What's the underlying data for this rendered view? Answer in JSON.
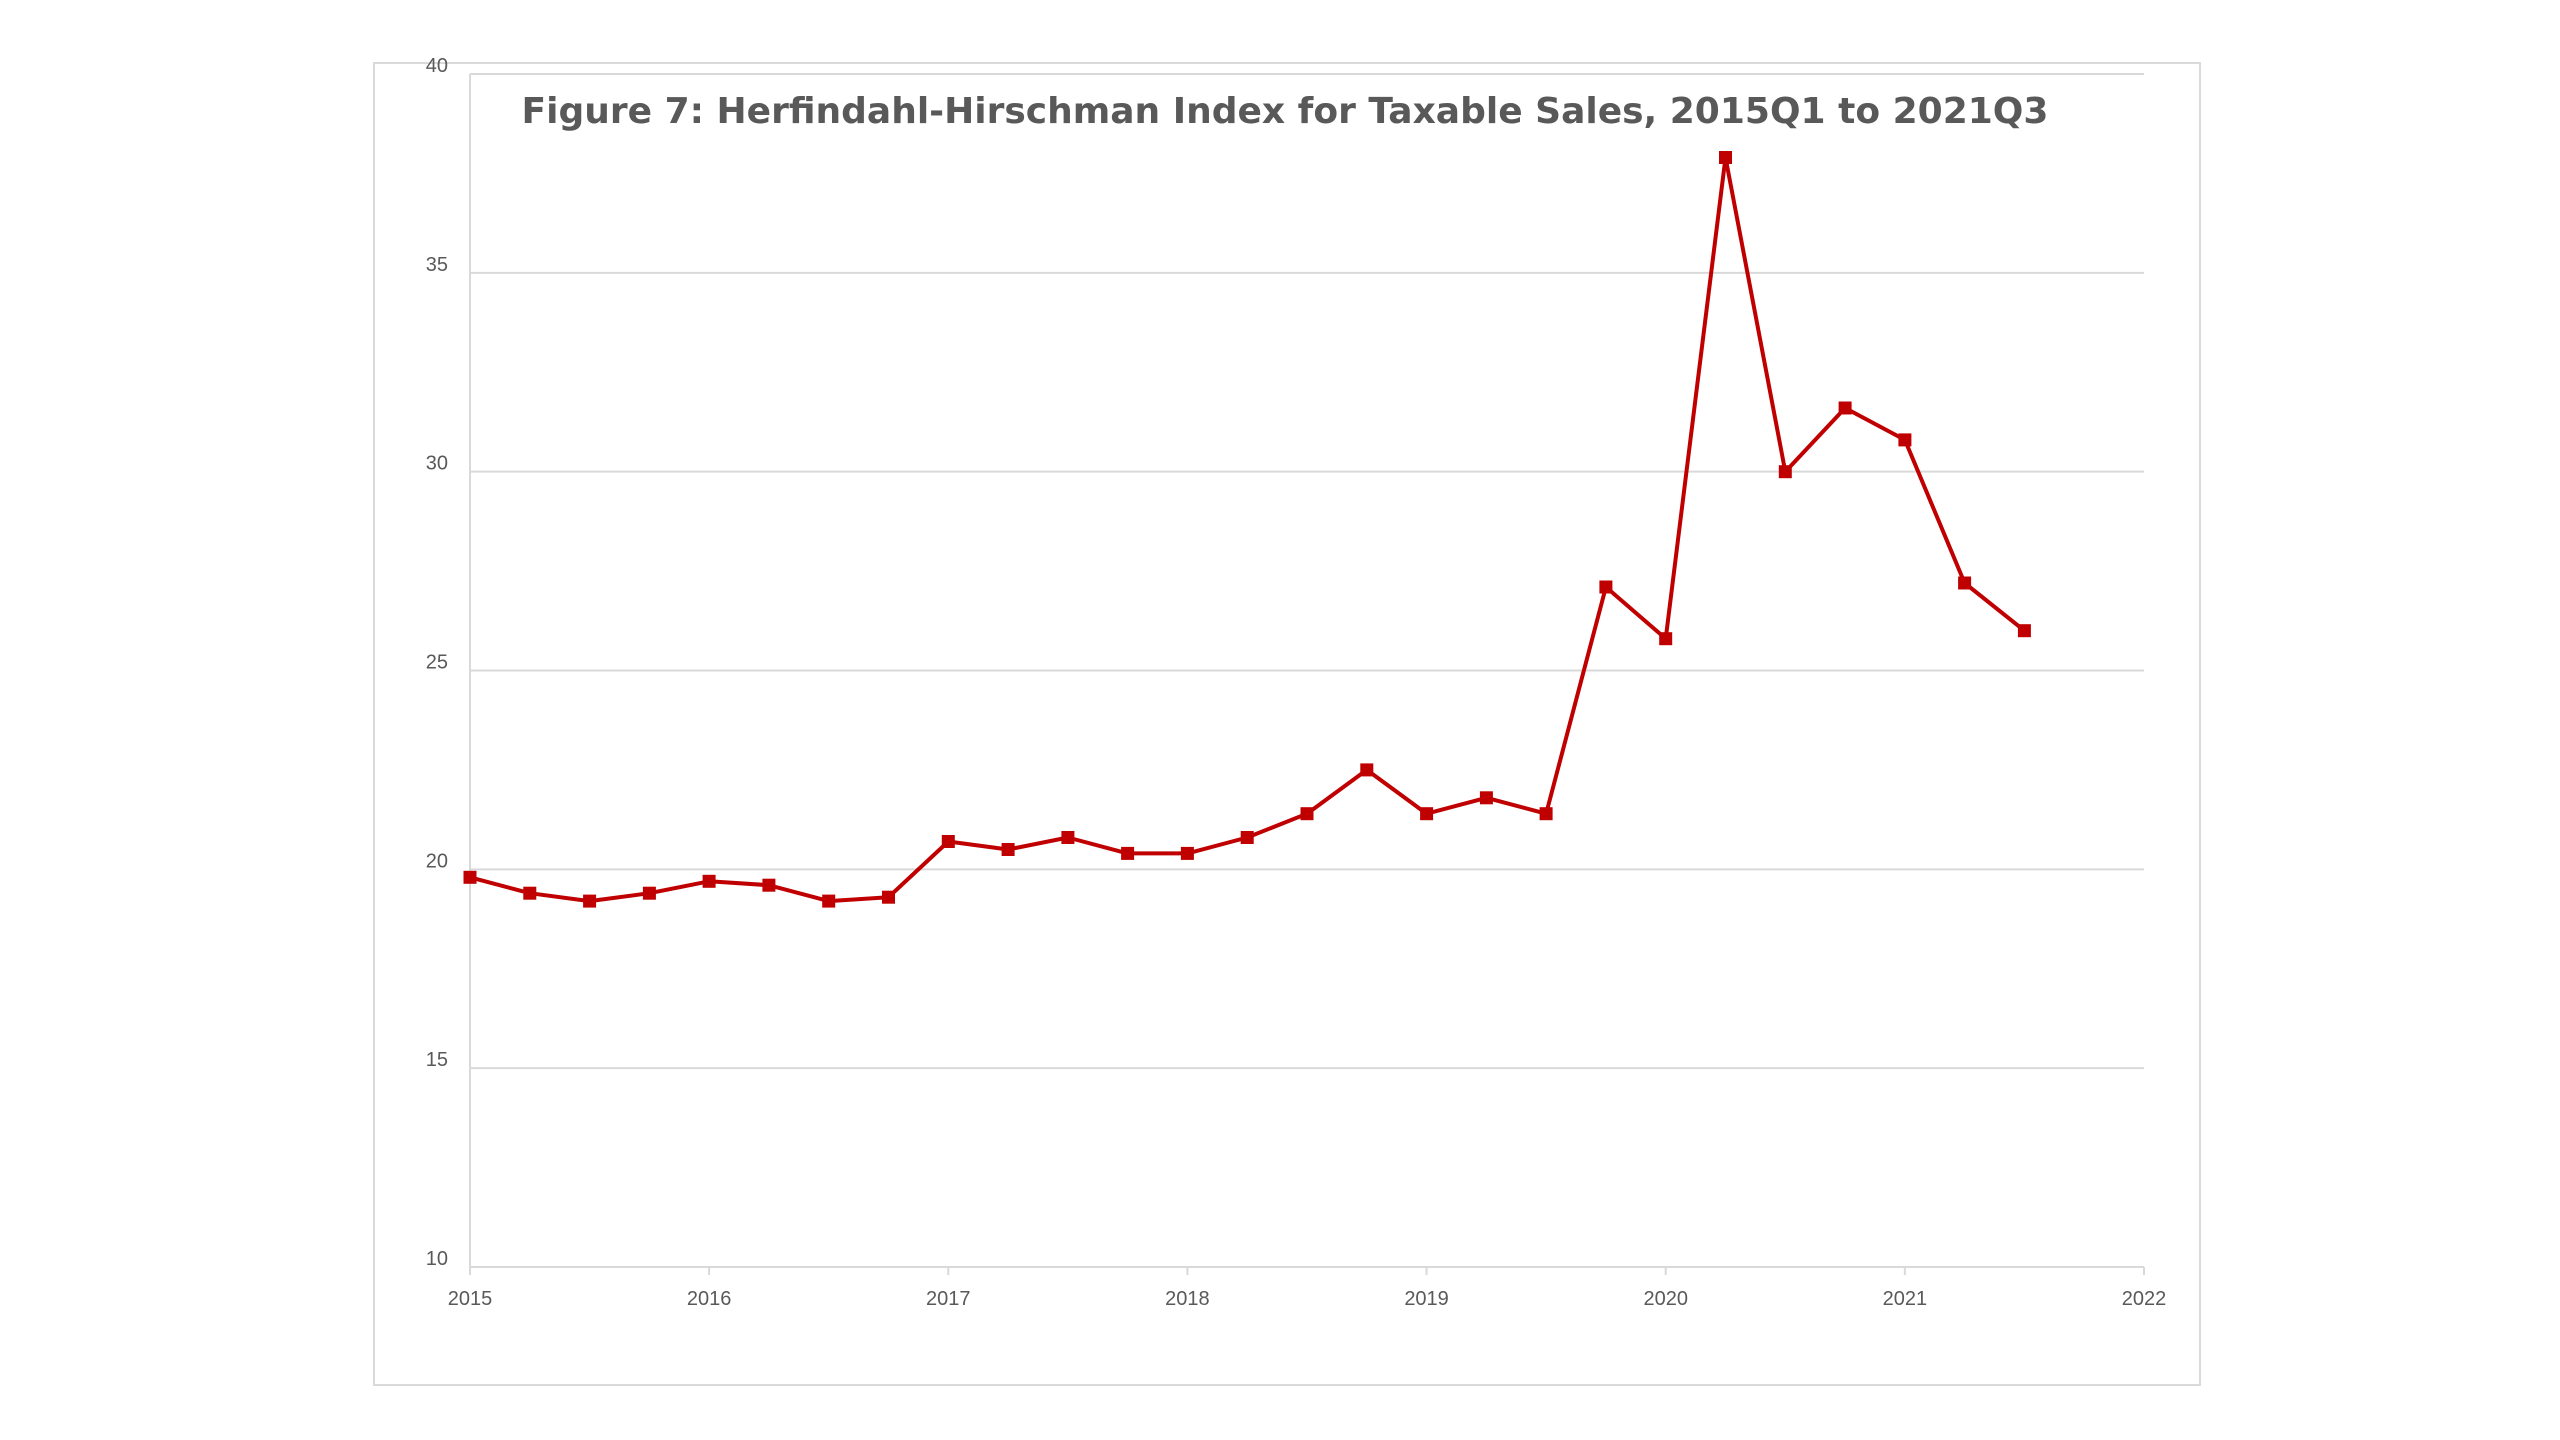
{
  "chart_data": {
    "type": "line",
    "title": "Figure 7: Herfindahl-Hirschman Index for Taxable Sales, 2015Q1 to 2021Q3",
    "xlabel": "",
    "ylabel": "",
    "xlim": [
      2015,
      2022
    ],
    "ylim": [
      10,
      40
    ],
    "x_ticks": [
      2015,
      2016,
      2017,
      2018,
      2019,
      2020,
      2021,
      2022
    ],
    "y_ticks": [
      10,
      15,
      20,
      25,
      30,
      35,
      40
    ],
    "grid": true,
    "legend": "none",
    "series": [
      {
        "color": "#c00000",
        "marker": "square",
        "x": [
          2015.0,
          2015.25,
          2015.5,
          2015.75,
          2016.0,
          2016.25,
          2016.5,
          2016.75,
          2017.0,
          2017.25,
          2017.5,
          2017.75,
          2018.0,
          2018.25,
          2018.5,
          2018.75,
          2019.0,
          2019.25,
          2019.5,
          2019.75,
          2020.0,
          2020.25,
          2020.5,
          2020.75,
          2021.0,
          2021.25,
          2021.5
        ],
        "values": [
          19.8,
          19.4,
          19.2,
          19.4,
          19.7,
          19.6,
          19.2,
          19.3,
          20.7,
          20.5,
          20.8,
          20.4,
          20.4,
          20.8,
          21.4,
          22.5,
          21.4,
          21.8,
          21.4,
          27.1,
          25.8,
          37.9,
          30.0,
          31.6,
          30.8,
          27.2,
          26.0
        ]
      }
    ]
  }
}
